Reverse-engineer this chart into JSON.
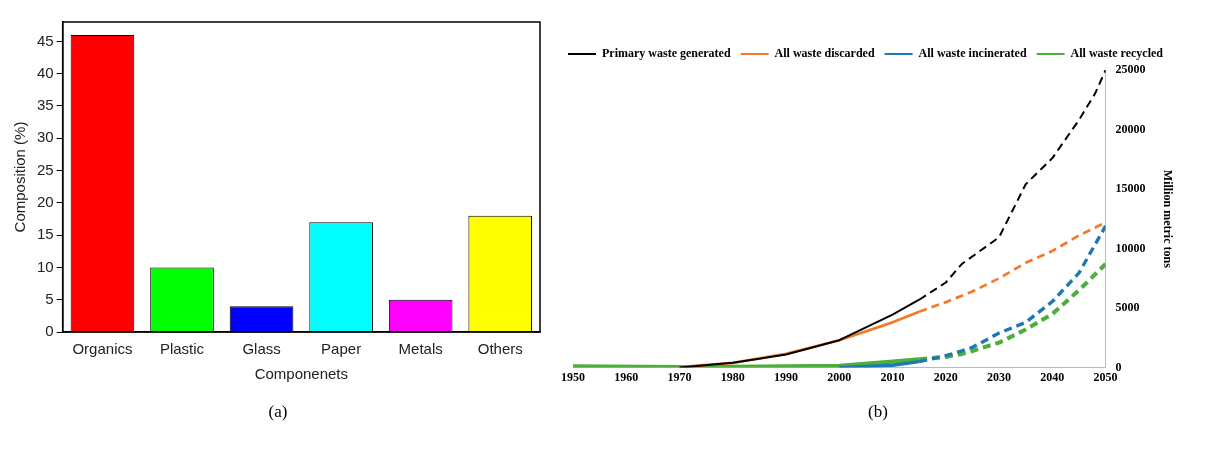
{
  "chart_data": [
    {
      "type": "bar",
      "xlabel": "Componenets",
      "ylabel": "Composition (%)",
      "categories": [
        "Organics",
        "Plastic",
        "Glass",
        "Paper",
        "Metals",
        "Others"
      ],
      "values": [
        46,
        10,
        4,
        17,
        5,
        18
      ],
      "colors": [
        "#ff0000",
        "#00ff00",
        "#0000ff",
        "#00ffff",
        "#ff00ff",
        "#ffff00"
      ],
      "ylim": [
        0,
        48
      ],
      "yticks": [
        0,
        5,
        10,
        15,
        20,
        25,
        30,
        35,
        40,
        45
      ],
      "grid": false,
      "legend": false,
      "annotations": [
        "(a)"
      ]
    },
    {
      "type": "line",
      "ylabel": "Million metric tons",
      "xlim": [
        1950,
        2050
      ],
      "xticks": [
        1950,
        1960,
        1970,
        1980,
        1990,
        2000,
        2010,
        2020,
        2030,
        2040,
        2050
      ],
      "ylim": [
        0,
        25000
      ],
      "yticks": [
        0,
        5000,
        10000,
        15000,
        20000,
        25000
      ],
      "grid": false,
      "legend": "top left",
      "marker": "none",
      "annotations": [
        "(b)"
      ],
      "series": [
        {
          "name": "Primary waste generated",
          "color": "#000000",
          "line_style": "solid",
          "x": [
            1970,
            1980,
            1990,
            2000,
            2010,
            2015
          ],
          "values": [
            0,
            400,
            1100,
            2300,
            4450,
            5700
          ]
        },
        {
          "name": "All waste discarded",
          "color": "#f4792a",
          "line_style": "solid",
          "x": [
            1970,
            1980,
            1990,
            2000,
            2010,
            2015
          ],
          "values": [
            50,
            400,
            1150,
            2300,
            3800,
            4700
          ]
        },
        {
          "name": "All waste incinerated",
          "color": "#1f77b4",
          "line_style": "solid",
          "x": [
            2000,
            2010,
            2015
          ],
          "values": [
            0,
            200,
            500
          ]
        },
        {
          "name": "All waste recycled",
          "color": "#4caf3c",
          "line_style": "solid",
          "x": [
            1950,
            1970,
            1990,
            2000,
            2010,
            2015
          ],
          "values": [
            100,
            50,
            100,
            150,
            500,
            700
          ]
        },
        {
          "color": "#000000",
          "line_style": "dashed",
          "x": [
            2015,
            2020,
            2023,
            2030,
            2035,
            2040,
            2045,
            2048,
            2050
          ],
          "values": [
            5700,
            7150,
            8700,
            10950,
            15400,
            17600,
            20800,
            23000,
            25000
          ]
        },
        {
          "color": "#f4792a",
          "line_style": "dashed",
          "x": [
            2015,
            2020,
            2025,
            2030,
            2035,
            2040,
            2045,
            2050
          ],
          "values": [
            4700,
            5500,
            6400,
            7500,
            8800,
            9800,
            11100,
            12200
          ]
        },
        {
          "color": "#1f77b4",
          "line_style": "dashed",
          "x": [
            2015,
            2020,
            2023,
            2025,
            2030,
            2035,
            2040,
            2045,
            2050
          ],
          "values": [
            500,
            1000,
            1400,
            1700,
            2900,
            3800,
            5550,
            7950,
            11900
          ]
        },
        {
          "color": "#4caf3c",
          "line_style": "dashed",
          "x": [
            2015,
            2020,
            2023,
            2025,
            2030,
            2035,
            2040,
            2045,
            2050
          ],
          "values": [
            700,
            900,
            1150,
            1400,
            2100,
            3200,
            4500,
            6500,
            8700
          ]
        }
      ]
    }
  ]
}
